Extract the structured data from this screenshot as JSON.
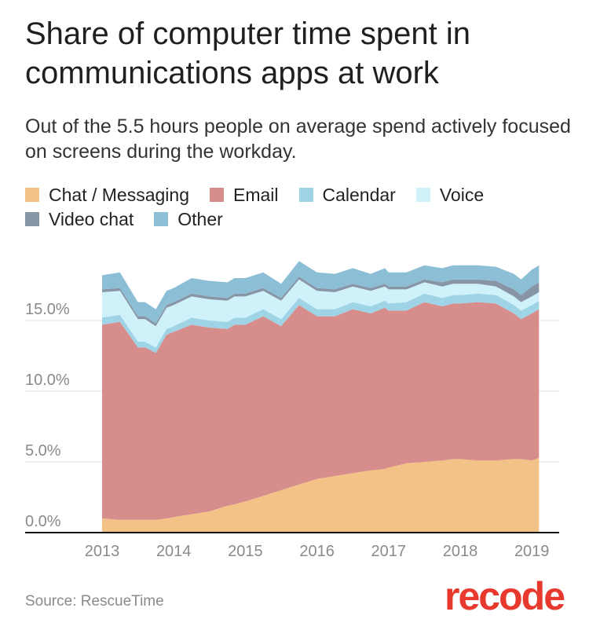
{
  "title": "Share of computer time spent in communications apps at work",
  "subtitle": "Out of the 5.5 hours people on average spend actively focused on screens during the workday.",
  "source": "Source: RescueTime",
  "logo": "recode",
  "legend": [
    {
      "label": "Chat / Messaging",
      "color": "#f2c287"
    },
    {
      "label": "Email",
      "color": "#d68d8b"
    },
    {
      "label": "Calendar",
      "color": "#9fd3e6"
    },
    {
      "label": "Voice",
      "color": "#cff2fa"
    },
    {
      "label": "Video chat",
      "color": "#8795a6"
    },
    {
      "label": "Other",
      "color": "#8cbfd6"
    }
  ],
  "chart_data": {
    "type": "area",
    "stacked": true,
    "title": "Share of computer time spent in communications apps at work",
    "xlabel": "",
    "ylabel": "",
    "x_ticks": [
      "2013",
      "2014",
      "2015",
      "2016",
      "2017",
      "2018",
      "2019"
    ],
    "x_range": [
      2012.95,
      2019.15
    ],
    "ylim": [
      0,
      20
    ],
    "y_ticks": [
      "0.0%",
      "5.0%",
      "10.0%",
      "15.0%"
    ],
    "y_tick_values": [
      0,
      5,
      10,
      15
    ],
    "grid": true,
    "legend_position": "top",
    "x": [
      2013.0,
      2013.25,
      2013.5,
      2013.6,
      2013.75,
      2013.9,
      2014.0,
      2014.25,
      2014.5,
      2014.75,
      2014.85,
      2015.0,
      2015.25,
      2015.5,
      2015.75,
      2016.0,
      2016.25,
      2016.5,
      2016.75,
      2016.95,
      2017.0,
      2017.25,
      2017.5,
      2017.75,
      2017.9,
      2018.0,
      2018.25,
      2018.5,
      2018.75,
      2018.85,
      2019.0,
      2019.1
    ],
    "series": [
      {
        "name": "Chat / Messaging",
        "values": [
          1.0,
          0.9,
          0.9,
          0.9,
          0.9,
          1.0,
          1.1,
          1.3,
          1.5,
          1.9,
          2.0,
          2.2,
          2.6,
          3.0,
          3.4,
          3.8,
          4.0,
          4.2,
          4.4,
          4.5,
          4.6,
          4.9,
          5.0,
          5.1,
          5.2,
          5.2,
          5.1,
          5.1,
          5.2,
          5.2,
          5.1,
          5.3
        ]
      },
      {
        "name": "Email",
        "values": [
          13.7,
          14.0,
          12.2,
          12.2,
          11.8,
          13.0,
          13.1,
          13.4,
          13.0,
          12.5,
          12.7,
          12.5,
          12.7,
          11.6,
          12.7,
          11.5,
          11.3,
          11.6,
          11.1,
          11.4,
          11.1,
          10.8,
          11.3,
          10.9,
          11.0,
          11.0,
          11.2,
          11.1,
          10.3,
          9.9,
          10.4,
          10.5
        ]
      },
      {
        "name": "Calendar",
        "values": [
          0.5,
          0.5,
          0.4,
          0.4,
          0.4,
          0.4,
          0.4,
          0.5,
          0.5,
          0.5,
          0.5,
          0.5,
          0.5,
          0.5,
          0.5,
          0.5,
          0.5,
          0.5,
          0.5,
          0.5,
          0.5,
          0.6,
          0.6,
          0.6,
          0.6,
          0.6,
          0.6,
          0.6,
          0.6,
          0.6,
          0.6,
          0.6
        ]
      },
      {
        "name": "Voice",
        "values": [
          1.8,
          1.7,
          1.6,
          1.6,
          1.5,
          1.5,
          1.5,
          1.5,
          1.5,
          1.5,
          1.5,
          1.5,
          1.3,
          1.3,
          1.3,
          1.3,
          1.2,
          1.1,
          1.1,
          1.0,
          1.0,
          0.9,
          0.8,
          0.8,
          0.8,
          0.8,
          0.7,
          0.6,
          0.6,
          0.6,
          0.6,
          0.6
        ]
      },
      {
        "name": "Video chat",
        "values": [
          0.2,
          0.2,
          0.2,
          0.2,
          0.2,
          0.2,
          0.2,
          0.2,
          0.2,
          0.2,
          0.2,
          0.2,
          0.2,
          0.2,
          0.2,
          0.2,
          0.2,
          0.2,
          0.2,
          0.2,
          0.2,
          0.2,
          0.2,
          0.3,
          0.3,
          0.3,
          0.3,
          0.4,
          0.5,
          0.5,
          0.7,
          0.7
        ]
      },
      {
        "name": "Other",
        "values": [
          1.0,
          1.1,
          1.0,
          1.0,
          1.0,
          1.0,
          1.0,
          1.1,
          1.1,
          1.1,
          1.1,
          1.1,
          1.1,
          1.0,
          1.1,
          1.1,
          1.1,
          1.1,
          1.0,
          1.1,
          1.0,
          1.0,
          1.0,
          1.0,
          1.0,
          1.0,
          1.0,
          1.0,
          1.1,
          1.1,
          1.2,
          1.2
        ]
      }
    ]
  }
}
